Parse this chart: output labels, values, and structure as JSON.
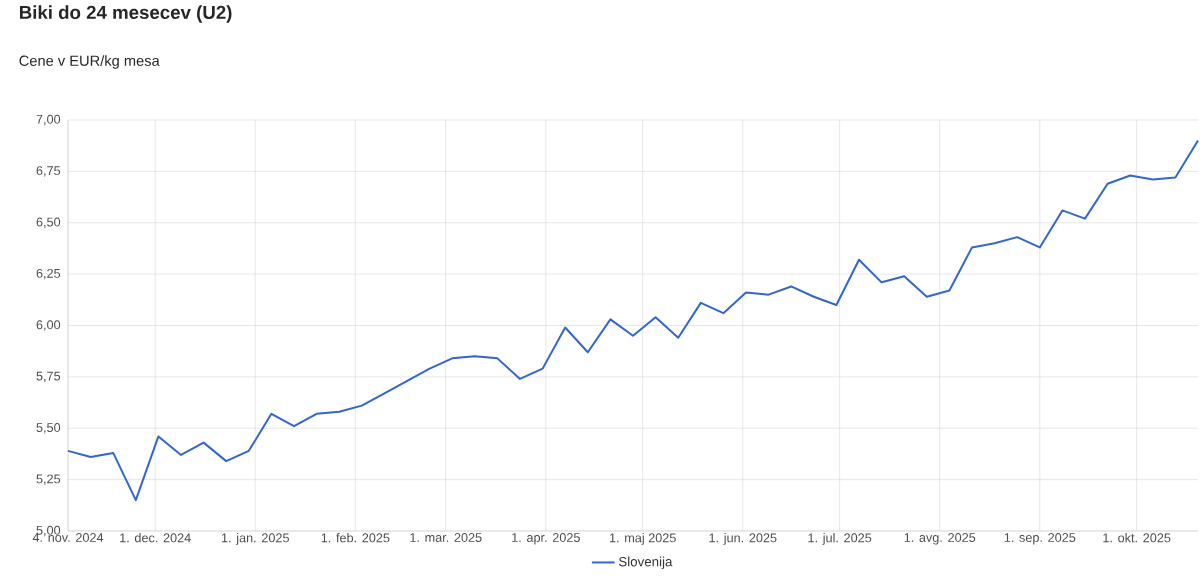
{
  "chart_data": {
    "type": "line",
    "title": "Biki do 24 mesecev (U2)",
    "subtitle": "Cene v EUR/kg mesa",
    "x": [
      "2024-11-04",
      "2024-11-11",
      "2024-11-18",
      "2024-11-25",
      "2024-12-02",
      "2024-12-09",
      "2024-12-16",
      "2024-12-23",
      "2024-12-30",
      "2025-01-06",
      "2025-01-13",
      "2025-01-20",
      "2025-01-27",
      "2025-02-03",
      "2025-02-10",
      "2025-02-17",
      "2025-02-24",
      "2025-03-03",
      "2025-03-10",
      "2025-03-17",
      "2025-03-24",
      "2025-03-31",
      "2025-04-07",
      "2025-04-14",
      "2025-04-21",
      "2025-04-28",
      "2025-05-05",
      "2025-05-12",
      "2025-05-19",
      "2025-05-26",
      "2025-06-02",
      "2025-06-09",
      "2025-06-16",
      "2025-06-23",
      "2025-06-30",
      "2025-07-07",
      "2025-07-14",
      "2025-07-21",
      "2025-07-28",
      "2025-08-04",
      "2025-08-11",
      "2025-08-18",
      "2025-08-25",
      "2025-09-01",
      "2025-09-08",
      "2025-09-15",
      "2025-09-22",
      "2025-09-29",
      "2025-10-06",
      "2025-10-13",
      "2025-10-20"
    ],
    "series": [
      {
        "name": "Slovenija",
        "color": "#3366cc",
        "values": [
          5.39,
          5.36,
          5.38,
          5.15,
          5.46,
          5.37,
          5.43,
          5.34,
          5.39,
          5.57,
          5.51,
          5.57,
          5.58,
          5.61,
          5.67,
          5.73,
          5.79,
          5.84,
          5.85,
          5.84,
          5.74,
          5.79,
          5.99,
          5.87,
          6.03,
          5.95,
          6.04,
          5.94,
          6.11,
          6.06,
          6.16,
          6.15,
          6.19,
          6.14,
          6.1,
          6.32,
          6.21,
          6.24,
          6.14,
          6.17,
          6.38,
          6.4,
          6.43,
          6.38,
          6.56,
          6.52,
          6.69,
          6.73,
          6.71,
          6.72,
          6.9
        ]
      }
    ],
    "xlim": [
      "2024-11-04",
      "2025-10-20"
    ],
    "xticks": [
      {
        "value": "2024-11-04",
        "label": "4. nov. 2024"
      },
      {
        "value": "2024-12-01",
        "label": "1. dec. 2024"
      },
      {
        "value": "2025-01-01",
        "label": "1. jan. 2025"
      },
      {
        "value": "2025-02-01",
        "label": "1. feb. 2025"
      },
      {
        "value": "2025-03-01",
        "label": "1. mar. 2025"
      },
      {
        "value": "2025-04-01",
        "label": "1. apr. 2025"
      },
      {
        "value": "2025-05-01",
        "label": "1. maj 2025"
      },
      {
        "value": "2025-06-01",
        "label": "1. jun. 2025"
      },
      {
        "value": "2025-07-01",
        "label": "1. jul. 2025"
      },
      {
        "value": "2025-08-01",
        "label": "1. avg. 2025"
      },
      {
        "value": "2025-09-01",
        "label": "1. sep. 2025"
      },
      {
        "value": "2025-10-01",
        "label": "1. okt. 2025"
      }
    ],
    "ylim": [
      5,
      7
    ],
    "yticks": [
      {
        "value": 5,
        "label": "5,00"
      },
      {
        "value": 5.25,
        "label": "5,25"
      },
      {
        "value": 5.5,
        "label": "5,50"
      },
      {
        "value": 5.75,
        "label": "5,75"
      },
      {
        "value": 6,
        "label": "6,00"
      },
      {
        "value": 6.25,
        "label": "6,25"
      },
      {
        "value": 6.5,
        "label": "6,50"
      },
      {
        "value": 6.75,
        "label": "6,75"
      },
      {
        "value": 7,
        "label": "7,00"
      }
    ],
    "grid": true,
    "legend": "bottom",
    "marker": "none",
    "line_style": "solid"
  }
}
